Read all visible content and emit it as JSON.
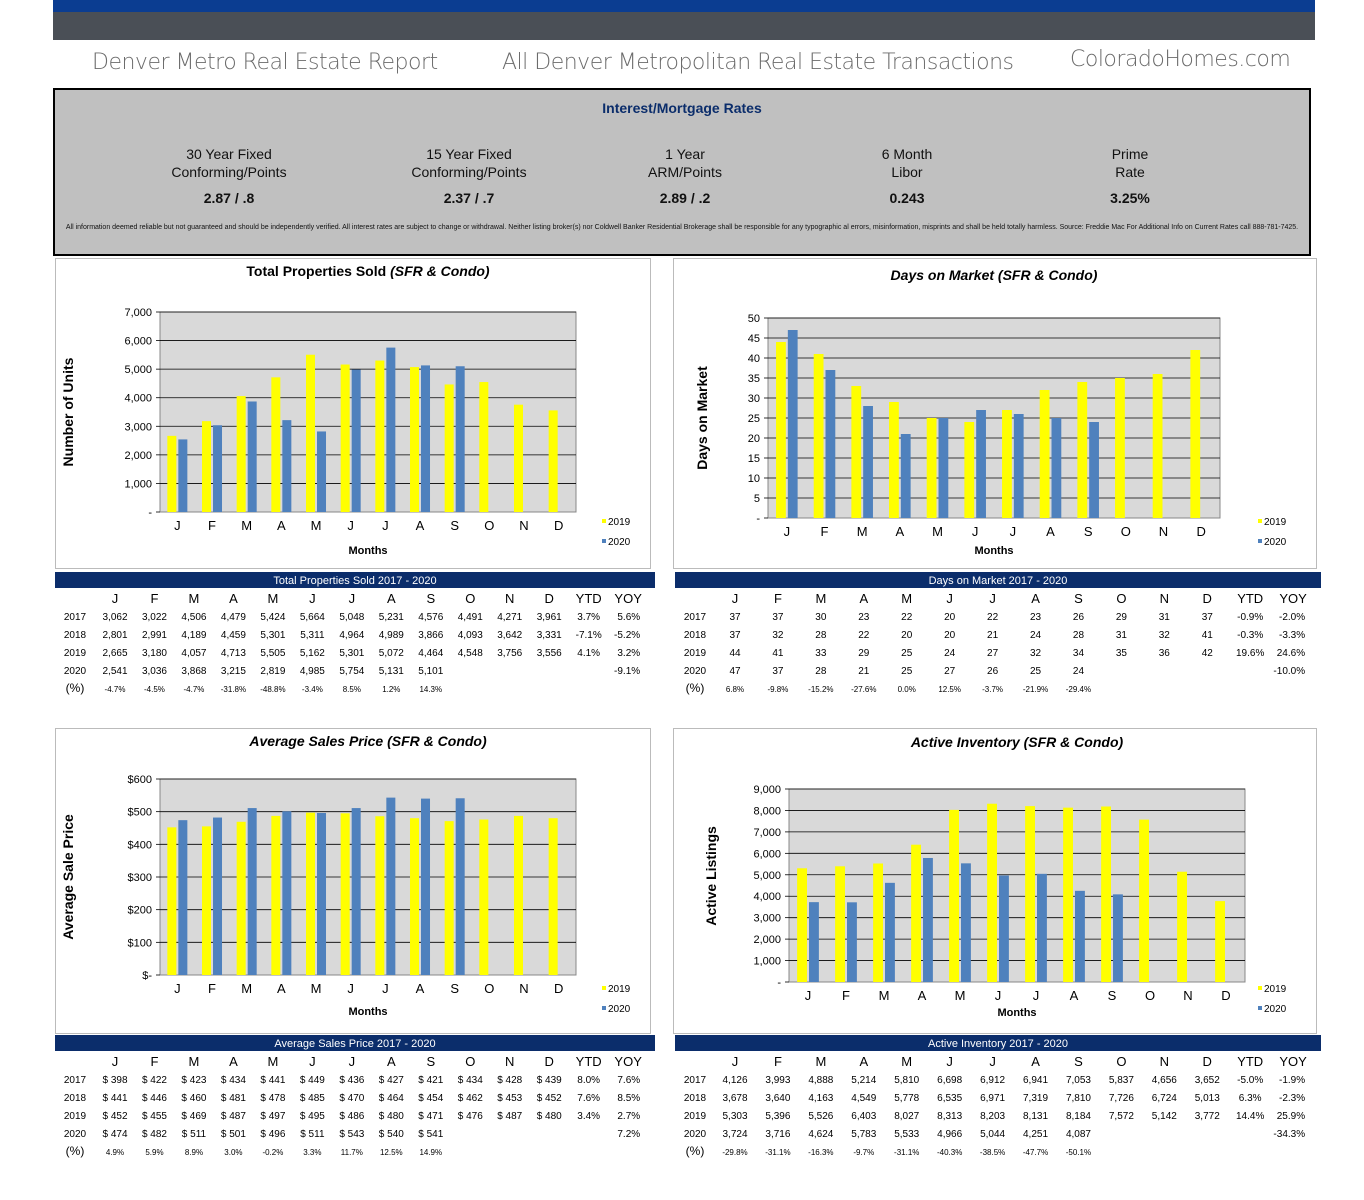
{
  "header": {
    "left": "Denver Metro Real Estate Report",
    "center": "All Denver Metropolitan Real Estate Transactions",
    "right": "ColoradoHomes.com"
  },
  "rates": {
    "title": "Interest/Mortgage Rates",
    "items": [
      {
        "l1": "30 Year Fixed",
        "l2": "Conforming/Points",
        "value": "2.87 /  .8"
      },
      {
        "l1": "15 Year Fixed",
        "l2": "Conforming/Points",
        "value": "2.37  /  .7"
      },
      {
        "l1": "1 Year",
        "l2": "ARM/Points",
        "value": "2.89 / .2"
      },
      {
        "l1": "6 Month",
        "l2": "Libor",
        "value": "0.243"
      },
      {
        "l1": "Prime",
        "l2": "Rate",
        "value": "3.25%"
      }
    ],
    "disclaimer": "All information deemed reliable but not guaranteed and should be independently verified. All interest rates are subject to change or withdrawal. Neither listing broker(s) nor Coldwell Banker Residential Brokerage shall be responsible for any typographic al errors,  misinformation, misprints and shall be held totally harmless. Source: Freddie Mac                                                    For Additional Info on Current Rates call 888-781-7425."
  },
  "colors": {
    "y2019": "#ffff00",
    "y2020": "#4f81bd",
    "plot_bg": "#d9d9d9",
    "table_head": "#0b2d6b"
  },
  "chart_data": [
    {
      "type": "bar",
      "title": "Total Properties Sold",
      "title_suffix": "(SFR & Condo)",
      "xlabel": "Months",
      "ylabel": "Number of Units",
      "categories": [
        "J",
        "F",
        "M",
        "A",
        "M",
        "J",
        "J",
        "A",
        "S",
        "O",
        "N",
        "D"
      ],
      "yticks": [
        "-",
        "1,000",
        "2,000",
        "3,000",
        "4,000",
        "5,000",
        "6,000",
        "7,000"
      ],
      "ylim": [
        0,
        7000
      ],
      "series": [
        {
          "name": "2019",
          "values": [
            2665,
            3180,
            4057,
            4713,
            5505,
            5162,
            5301,
            5072,
            4464,
            4548,
            3756,
            3556
          ]
        },
        {
          "name": "2020",
          "values": [
            2541,
            3036,
            3868,
            3215,
            2819,
            4985,
            5754,
            5131,
            5101,
            null,
            null,
            null
          ]
        }
      ],
      "table": {
        "caption": "Total Properties Sold   2017 - 2020",
        "cols": [
          "J",
          "F",
          "M",
          "A",
          "M",
          "J",
          "J",
          "A",
          "S",
          "O",
          "N",
          "D",
          "YTD",
          "YOY"
        ],
        "rows": [
          {
            "label": "2017",
            "cells": [
              "3,062",
              "3,022",
              "4,506",
              "4,479",
              "5,424",
              "5,664",
              "5,048",
              "5,231",
              "4,576",
              "4,491",
              "4,271",
              "3,961",
              "3.7%",
              "5.6%"
            ]
          },
          {
            "label": "2018",
            "cells": [
              "2,801",
              "2,991",
              "4,189",
              "4,459",
              "5,301",
              "5,311",
              "4,964",
              "4,989",
              "3,866",
              "4,093",
              "3,642",
              "3,331",
              "-7.1%",
              "-5.2%"
            ]
          },
          {
            "label": "2019",
            "cells": [
              "2,665",
              "3,180",
              "4,057",
              "4,713",
              "5,505",
              "5,162",
              "5,301",
              "5,072",
              "4,464",
              "4,548",
              "3,756",
              "3,556",
              "4.1%",
              "3.2%"
            ]
          },
          {
            "label": "2020",
            "cells": [
              "2,541",
              "3,036",
              "3,868",
              "3,215",
              "2,819",
              "4,985",
              "5,754",
              "5,131",
              "5,101",
              "",
              "",
              "",
              "",
              "-9.1%"
            ]
          },
          {
            "label": "(%)",
            "cells": [
              "-4.7%",
              "-4.5%",
              "-4.7%",
              "-31.8%",
              "-48.8%",
              "-3.4%",
              "8.5%",
              "1.2%",
              "14.3%",
              "",
              "",
              "",
              "",
              ""
            ]
          }
        ]
      }
    },
    {
      "type": "bar",
      "title": "Days on Market (SFR & Condo)",
      "xlabel": "Months",
      "ylabel": "Days on Market",
      "categories": [
        "J",
        "F",
        "M",
        "A",
        "M",
        "J",
        "J",
        "A",
        "S",
        "O",
        "N",
        "D"
      ],
      "yticks": [
        "-",
        "5",
        "10",
        "15",
        "20",
        "25",
        "30",
        "35",
        "40",
        "45",
        "50"
      ],
      "ylim": [
        0,
        50
      ],
      "series": [
        {
          "name": "2019",
          "values": [
            44,
            41,
            33,
            29,
            25,
            24,
            27,
            32,
            34,
            35,
            36,
            42
          ]
        },
        {
          "name": "2020",
          "values": [
            47,
            37,
            28,
            21,
            25,
            27,
            26,
            25,
            24,
            null,
            null,
            null
          ]
        }
      ],
      "table": {
        "caption": "Days on Market  2017 - 2020",
        "cols": [
          "J",
          "F",
          "M",
          "A",
          "M",
          "J",
          "J",
          "A",
          "S",
          "O",
          "N",
          "D",
          "YTD",
          "YOY"
        ],
        "rows": [
          {
            "label": "2017",
            "cells": [
              "37",
              "37",
              "30",
              "23",
              "22",
              "20",
              "22",
              "23",
              "26",
              "29",
              "31",
              "37",
              "-0.9%",
              "-2.0%"
            ]
          },
          {
            "label": "2018",
            "cells": [
              "37",
              "32",
              "28",
              "22",
              "20",
              "20",
              "21",
              "24",
              "28",
              "31",
              "32",
              "41",
              "-0.3%",
              "-3.3%"
            ]
          },
          {
            "label": "2019",
            "cells": [
              "44",
              "41",
              "33",
              "29",
              "25",
              "24",
              "27",
              "32",
              "34",
              "35",
              "36",
              "42",
              "19.6%",
              "24.6%"
            ]
          },
          {
            "label": "2020",
            "cells": [
              "47",
              "37",
              "28",
              "21",
              "25",
              "27",
              "26",
              "25",
              "24",
              "",
              "",
              "",
              "",
              "-10.0%"
            ]
          },
          {
            "label": "(%)",
            "cells": [
              "6.8%",
              "-9.8%",
              "-15.2%",
              "-27.6%",
              "0.0%",
              "12.5%",
              "-3.7%",
              "-21.9%",
              "-29.4%",
              "",
              "",
              "",
              "",
              ""
            ]
          }
        ]
      }
    },
    {
      "type": "bar",
      "title": "Average Sales Price (SFR & Condo)",
      "xlabel": "Months",
      "ylabel": "Average Sale Price",
      "categories": [
        "J",
        "F",
        "M",
        "A",
        "M",
        "J",
        "J",
        "A",
        "S",
        "O",
        "N",
        "D"
      ],
      "yticks": [
        "$-",
        "$100",
        "$200",
        "$300",
        "$400",
        "$500",
        "$600"
      ],
      "ylim": [
        0,
        600
      ],
      "series": [
        {
          "name": "2019",
          "values": [
            452,
            455,
            469,
            487,
            497,
            495,
            486,
            480,
            471,
            476,
            487,
            480
          ]
        },
        {
          "name": "2020",
          "values": [
            474,
            482,
            511,
            501,
            496,
            511,
            543,
            540,
            541,
            null,
            null,
            null
          ]
        }
      ],
      "table": {
        "caption": "Average Sales Price   2017 - 2020",
        "cols": [
          "J",
          "F",
          "M",
          "A",
          "M",
          "J",
          "J",
          "A",
          "S",
          "O",
          "N",
          "D",
          "YTD",
          "YOY"
        ],
        "rows": [
          {
            "label": "2017",
            "cells": [
              "$ 398",
              "$ 422",
              "$ 423",
              "$ 434",
              "$ 441",
              "$ 449",
              "$ 436",
              "$ 427",
              "$ 421",
              "$ 434",
              "$ 428",
              "$ 439",
              "8.0%",
              "7.6%"
            ]
          },
          {
            "label": "2018",
            "cells": [
              "$ 441",
              "$ 446",
              "$ 460",
              "$ 481",
              "$ 478",
              "$ 485",
              "$ 470",
              "$ 464",
              "$ 454",
              "$ 462",
              "$ 453",
              "$ 452",
              "7.6%",
              "8.5%"
            ]
          },
          {
            "label": "2019",
            "cells": [
              "$ 452",
              "$ 455",
              "$ 469",
              "$ 487",
              "$ 497",
              "$ 495",
              "$ 486",
              "$ 480",
              "$ 471",
              "$ 476",
              "$ 487",
              "$ 480",
              "3.4%",
              "2.7%"
            ]
          },
          {
            "label": "2020",
            "cells": [
              "$ 474",
              "$ 482",
              "$ 511",
              "$ 501",
              "$ 496",
              "$ 511",
              "$ 543",
              "$ 540",
              "$ 541",
              "",
              "",
              "",
              "",
              "7.2%"
            ]
          },
          {
            "label": "(%)",
            "cells": [
              "4.9%",
              "5.9%",
              "8.9%",
              "3.0%",
              "-0.2%",
              "3.3%",
              "11.7%",
              "12.5%",
              "14.9%",
              "",
              "",
              "",
              "",
              ""
            ]
          }
        ]
      }
    },
    {
      "type": "bar",
      "title": "Active Inventory (SFR & Condo)",
      "xlabel": "Months",
      "ylabel": "Active Listings",
      "categories": [
        "J",
        "F",
        "M",
        "A",
        "M",
        "J",
        "J",
        "A",
        "S",
        "O",
        "N",
        "D"
      ],
      "yticks": [
        "-",
        "1,000",
        "2,000",
        "3,000",
        "4,000",
        "5,000",
        "6,000",
        "7,000",
        "8,000",
        "9,000"
      ],
      "ylim": [
        0,
        9000
      ],
      "series": [
        {
          "name": "2019",
          "values": [
            5303,
            5396,
            5526,
            6403,
            8027,
            8313,
            8203,
            8131,
            8184,
            7572,
            5142,
            3772
          ]
        },
        {
          "name": "2020",
          "values": [
            3724,
            3716,
            4624,
            5783,
            5533,
            4966,
            5044,
            4251,
            4087,
            null,
            null,
            null
          ]
        }
      ],
      "table": {
        "caption": "Active Inventory  2017 - 2020",
        "cols": [
          "J",
          "F",
          "M",
          "A",
          "M",
          "J",
          "J",
          "A",
          "S",
          "O",
          "N",
          "D",
          "YTD",
          "YOY"
        ],
        "rows": [
          {
            "label": "2017",
            "cells": [
              "4,126",
              "3,993",
              "4,888",
              "5,214",
              "5,810",
              "6,698",
              "6,912",
              "6,941",
              "7,053",
              "5,837",
              "4,656",
              "3,652",
              "-5.0%",
              "-1.9%"
            ]
          },
          {
            "label": "2018",
            "cells": [
              "3,678",
              "3,640",
              "4,163",
              "4,549",
              "5,778",
              "6,535",
              "6,971",
              "7,319",
              "7,810",
              "7,726",
              "6,724",
              "5,013",
              "6.3%",
              "-2.3%"
            ]
          },
          {
            "label": "2019",
            "cells": [
              "5,303",
              "5,396",
              "5,526",
              "6,403",
              "8,027",
              "8,313",
              "8,203",
              "8,131",
              "8,184",
              "7,572",
              "5,142",
              "3,772",
              "14.4%",
              "25.9%"
            ]
          },
          {
            "label": "2020",
            "cells": [
              "3,724",
              "3,716",
              "4,624",
              "5,783",
              "5,533",
              "4,966",
              "5,044",
              "4,251",
              "4,087",
              "",
              "",
              "",
              "",
              "-34.3%"
            ]
          },
          {
            "label": "(%)",
            "cells": [
              "-29.8%",
              "-31.1%",
              "-16.3%",
              "-9.7%",
              "-31.1%",
              "-40.3%",
              "-38.5%",
              "-47.7%",
              "-50.1%",
              "",
              "",
              "",
              "",
              ""
            ]
          }
        ]
      }
    }
  ]
}
